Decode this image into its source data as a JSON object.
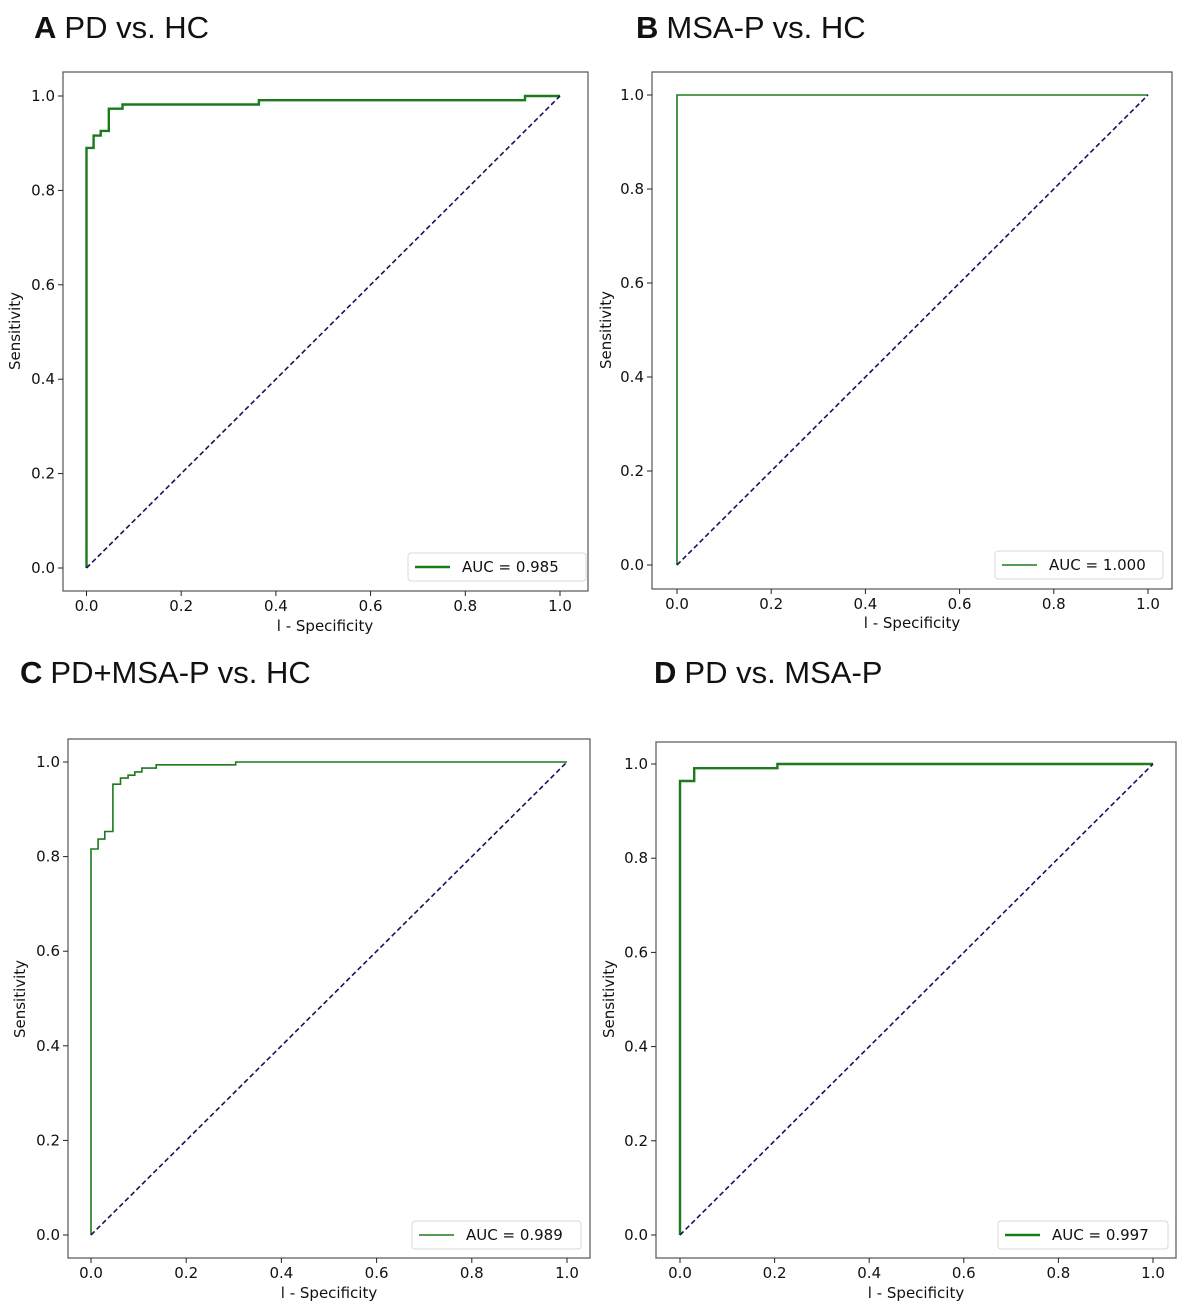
{
  "colors": {
    "roc": "#1b7a1b",
    "diagonal": "#14145a",
    "frame": "#555555"
  },
  "chart_data": [
    {
      "type": "line",
      "panel": "A",
      "title": "PD vs. HC",
      "xlabel": "l - Specificity",
      "ylabel": "Sensitivity",
      "xlim": [
        0,
        1
      ],
      "ylim": [
        0,
        1
      ],
      "xticks": [
        "0.0",
        "0.2",
        "0.4",
        "0.6",
        "0.8",
        "1.0"
      ],
      "yticks": [
        "0.0",
        "0.2",
        "0.4",
        "0.6",
        "0.8",
        "1.0"
      ],
      "legend": {
        "label": "AUC = 0.985",
        "placement": "lower-right"
      },
      "series": [
        {
          "name": "ROC",
          "step": true,
          "x": [
            0,
            0,
            0.015,
            0.015,
            0.03,
            0.03,
            0.047,
            0.047,
            0.076,
            0.076,
            0.364,
            0.364,
            0.926,
            0.926,
            1.0
          ],
          "y": [
            0,
            0.89,
            0.89,
            0.916,
            0.916,
            0.926,
            0.926,
            0.973,
            0.973,
            0.982,
            0.982,
            0.991,
            0.991,
            1.0,
            1.0
          ]
        },
        {
          "name": "chance",
          "x": [
            0,
            1
          ],
          "y": [
            0,
            1
          ]
        }
      ]
    },
    {
      "type": "line",
      "panel": "B",
      "title": "MSA-P vs. HC",
      "xlabel": "l - Specificity",
      "ylabel": "Sensitivity",
      "xlim": [
        0,
        1
      ],
      "ylim": [
        0,
        1
      ],
      "xticks": [
        "0.0",
        "0.2",
        "0.4",
        "0.6",
        "0.8",
        "1.0"
      ],
      "yticks": [
        "0.0",
        "0.2",
        "0.4",
        "0.6",
        "0.8",
        "1.0"
      ],
      "legend": {
        "label": "AUC = 1.000",
        "placement": "lower-right"
      },
      "series": [
        {
          "name": "ROC",
          "step": true,
          "x": [
            0,
            0,
            1.0
          ],
          "y": [
            0,
            1.0,
            1.0
          ]
        },
        {
          "name": "chance",
          "x": [
            0,
            1
          ],
          "y": [
            0,
            1
          ]
        }
      ]
    },
    {
      "type": "line",
      "panel": "C",
      "title": "PD+MSA-P vs. HC",
      "xlabel": "l - Specificity",
      "ylabel": "Sensitivity",
      "xlim": [
        0,
        1
      ],
      "ylim": [
        0,
        1
      ],
      "xticks": [
        "0.0",
        "0.2",
        "0.4",
        "0.6",
        "0.8",
        "1.0"
      ],
      "yticks": [
        "0.0",
        "0.2",
        "0.4",
        "0.6",
        "0.8",
        "1.0"
      ],
      "legend": {
        "label": "AUC = 0.989",
        "placement": "lower-right"
      },
      "series": [
        {
          "name": "ROC",
          "step": true,
          "x": [
            0,
            0,
            0.015,
            0.015,
            0.029,
            0.029,
            0.046,
            0.046,
            0.062,
            0.062,
            0.078,
            0.078,
            0.092,
            0.092,
            0.107,
            0.107,
            0.137,
            0.137,
            0.304,
            0.304,
            1.0
          ],
          "y": [
            0,
            0.816,
            0.816,
            0.837,
            0.837,
            0.853,
            0.853,
            0.953,
            0.953,
            0.966,
            0.966,
            0.972,
            0.972,
            0.979,
            0.979,
            0.987,
            0.987,
            0.994,
            0.994,
            1.0,
            1.0
          ]
        },
        {
          "name": "chance",
          "x": [
            0,
            1
          ],
          "y": [
            0,
            1
          ]
        }
      ]
    },
    {
      "type": "line",
      "panel": "D",
      "title": "PD vs. MSA-P",
      "xlabel": "l - Specificity",
      "ylabel": "Sensitivity",
      "xlim": [
        0,
        1
      ],
      "ylim": [
        0,
        1
      ],
      "xticks": [
        "0.0",
        "0.2",
        "0.4",
        "0.6",
        "0.8",
        "1.0"
      ],
      "yticks": [
        "0.0",
        "0.2",
        "0.4",
        "0.6",
        "0.8",
        "1.0"
      ],
      "legend": {
        "label": "AUC = 0.997",
        "placement": "lower-right"
      },
      "series": [
        {
          "name": "ROC",
          "step": true,
          "x": [
            0,
            0,
            0.03,
            0.03,
            0.206,
            0.206,
            1.0
          ],
          "y": [
            0,
            0.964,
            0.964,
            0.991,
            0.991,
            1.0,
            1.0
          ]
        },
        {
          "name": "chance",
          "x": [
            0,
            1
          ],
          "y": [
            0,
            1
          ]
        }
      ]
    }
  ]
}
